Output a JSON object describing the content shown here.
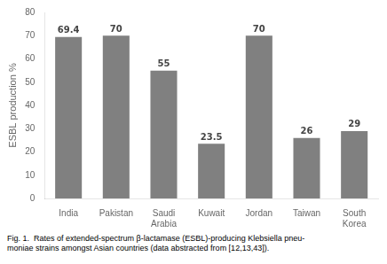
{
  "chart_data": {
    "type": "bar",
    "categories": [
      "India",
      "Pakistan",
      "Saudi\nArabia",
      "Kuwait",
      "Jordan",
      "Taiwan",
      "South\nKorea"
    ],
    "values": [
      69.4,
      70,
      55,
      23.5,
      70,
      26,
      29
    ],
    "color": "#808080",
    "ylabel": "ESBL production %",
    "ylim": [
      0,
      80
    ],
    "yticks": [
      0,
      10,
      20,
      30,
      40,
      50,
      60,
      70,
      80
    ],
    "grid": false,
    "data_labels": true,
    "caption": [
      "Fig. 1.  Rates of extended-spectrum β-lactamase (ESBL)-producing Klebsiella pneu-",
      "moniae strains amongst Asian countries (data abstracted from [12,13,43])."
    ]
  }
}
